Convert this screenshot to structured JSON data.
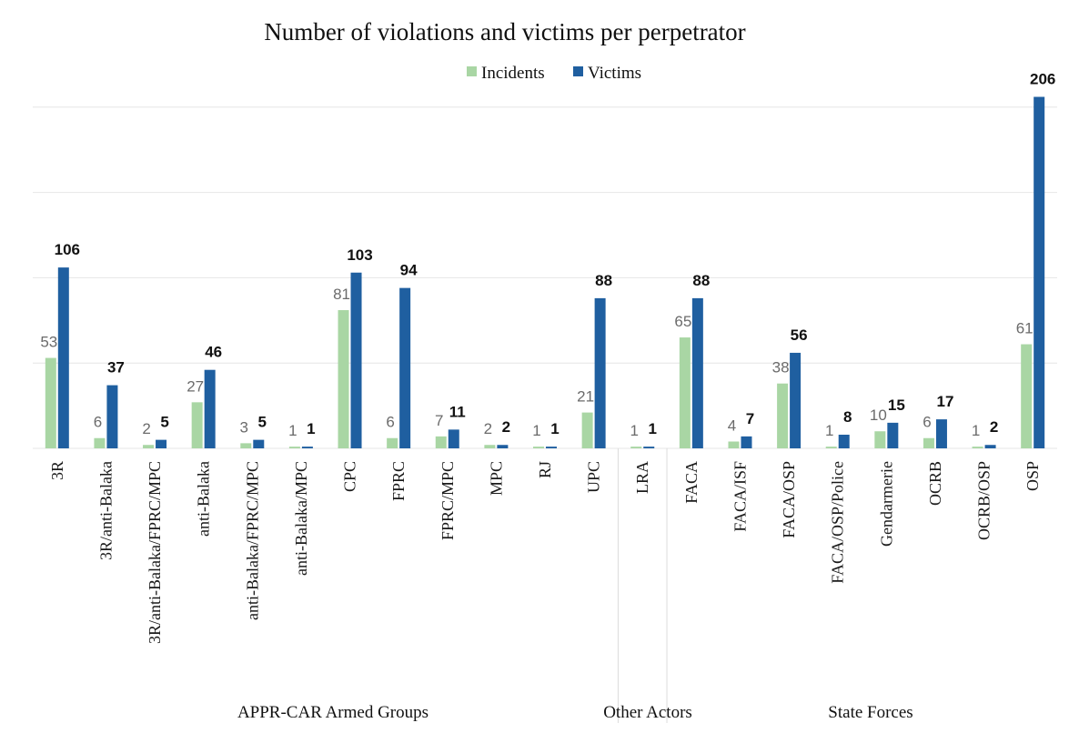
{
  "chart_data": {
    "type": "bar",
    "title": "Number of violations and victims per perpetrator",
    "categories": [
      "3R",
      "3R/anti-Balaka",
      "3R/anti-Balaka/FPRC/MPC",
      "anti-Balaka",
      "anti-Balaka/FPRC/MPC",
      "anti-Balaka/MPC",
      "CPC",
      "FPRC",
      "FPRC/MPC",
      "MPC",
      "RJ",
      "UPC",
      "LRA",
      "FACA",
      "FACA/ISF",
      "FACA/OSP",
      "FACA/OSP/Police",
      "Gendarmerie",
      "OCRB",
      "OCRB/OSP",
      "OSP"
    ],
    "series": [
      {
        "name": "Incidents",
        "color": "#a9d6a4",
        "values": [
          53,
          6,
          2,
          27,
          3,
          1,
          81,
          6,
          7,
          2,
          1,
          21,
          1,
          65,
          4,
          38,
          1,
          10,
          6,
          1,
          61
        ]
      },
      {
        "name": "Victims",
        "color": "#1f5fa0",
        "values": [
          106,
          37,
          5,
          46,
          5,
          1,
          103,
          94,
          11,
          2,
          1,
          88,
          1,
          88,
          7,
          56,
          8,
          15,
          17,
          2,
          206
        ]
      }
    ],
    "groups": [
      {
        "label": "APPR-CAR Armed Groups",
        "start": 0,
        "end": 11
      },
      {
        "label": "Other Actors",
        "start": 12,
        "end": 12
      },
      {
        "label": "State Forces",
        "start": 13,
        "end": 20
      }
    ],
    "ylim": [
      0,
      210
    ],
    "grid": true,
    "legend_position": "top-center",
    "xlabel": "",
    "ylabel": ""
  }
}
